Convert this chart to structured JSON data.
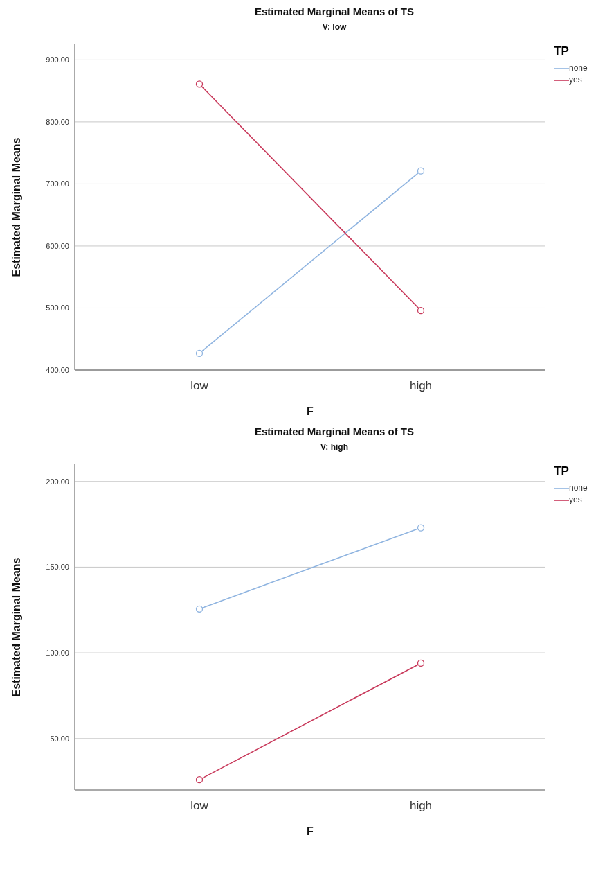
{
  "chart_data": [
    {
      "type": "line",
      "title": "Estimated Marginal Means of TS",
      "subtitle": "V: low",
      "xlabel": "F",
      "ylabel": "Estimated Marginal Means",
      "legend_title": "TP",
      "categories": [
        "low",
        "high"
      ],
      "series": [
        {
          "name": "none",
          "color": "#8fb4e0",
          "values": [
            427,
            721
          ]
        },
        {
          "name": "yes",
          "color": "#c8385a",
          "values": [
            861,
            496
          ]
        }
      ],
      "ylim": [
        400,
        925
      ],
      "yticks": [
        {
          "value": 400,
          "label": "400.00"
        },
        {
          "value": 500,
          "label": "500.00"
        },
        {
          "value": 600,
          "label": "600.00"
        },
        {
          "value": 700,
          "label": "700.00"
        },
        {
          "value": 800,
          "label": "800.00"
        },
        {
          "value": 900,
          "label": "900.00"
        }
      ],
      "grid": "y",
      "legend": "top right",
      "marker": "circle"
    },
    {
      "type": "line",
      "title": "Estimated Marginal Means of TS",
      "subtitle": "V: high",
      "xlabel": "F",
      "ylabel": "Estimated Marginal Means",
      "legend_title": "TP",
      "categories": [
        "low",
        "high"
      ],
      "series": [
        {
          "name": "none",
          "color": "#8fb4e0",
          "values": [
            125.6,
            173
          ]
        },
        {
          "name": "yes",
          "color": "#c8385a",
          "values": [
            26,
            94
          ]
        }
      ],
      "ylim": [
        20,
        210
      ],
      "yticks": [
        {
          "value": 50,
          "label": "50.00"
        },
        {
          "value": 100,
          "label": "100.00"
        },
        {
          "value": 150,
          "label": "150.00"
        },
        {
          "value": 200,
          "label": "200.00"
        }
      ],
      "grid": "y",
      "legend": "top right",
      "marker": "circle"
    }
  ]
}
